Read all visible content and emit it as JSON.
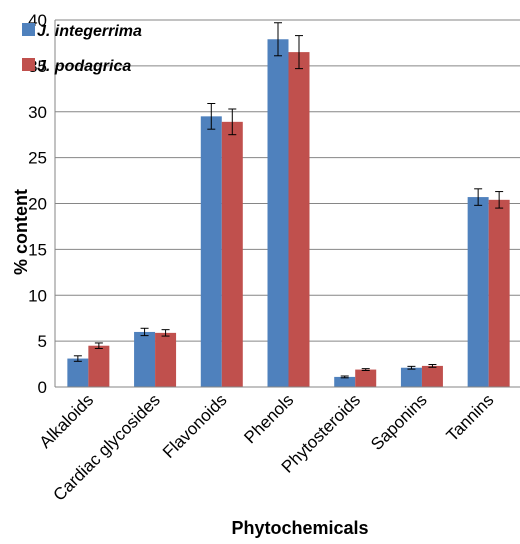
{
  "chart_data": {
    "type": "bar",
    "xlabel": "Phytochemicals",
    "ylabel": "% content",
    "ylim": [
      0,
      40
    ],
    "ytick_step": 5,
    "grid": true,
    "legend_position": "top-left",
    "categories": [
      "Alkaloids",
      "Cardiac glycosides",
      "Flavonoids",
      "Phenols",
      "Phytosteroids",
      "Saponins",
      "Tannins"
    ],
    "series": [
      {
        "name": "J. integerrima",
        "color": "#4F81BD",
        "values": [
          3.1,
          6.0,
          29.5,
          37.9,
          1.1,
          2.1,
          20.7
        ],
        "errors": [
          0.3,
          0.4,
          1.4,
          1.8,
          0.1,
          0.15,
          0.9
        ]
      },
      {
        "name": "J. podagrica",
        "color": "#C0504D",
        "values": [
          4.5,
          5.9,
          28.9,
          36.5,
          1.9,
          2.3,
          20.4
        ],
        "errors": [
          0.3,
          0.35,
          1.4,
          1.8,
          0.1,
          0.15,
          0.9
        ]
      }
    ]
  }
}
